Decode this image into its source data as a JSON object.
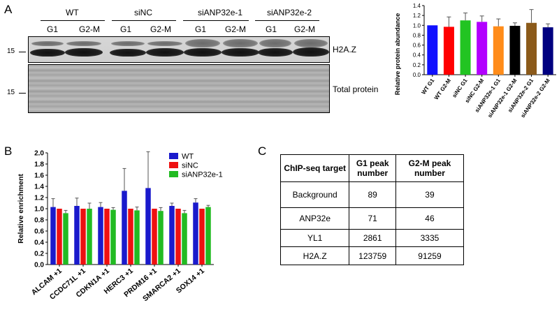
{
  "panel_a": {
    "letter": "A",
    "groups": [
      "WT",
      "siNC",
      "siANP32e-1",
      "siANP32e-2"
    ],
    "lanes": [
      "G1",
      "G2-M",
      "G1",
      "G2-M",
      "G1",
      "G2-M",
      "G1",
      "G2-M"
    ],
    "blot_top_label": "H2A.Z",
    "blot_bottom_label": "Total protein",
    "mw_top": "15",
    "mw_bottom": "15"
  },
  "panel_b": {
    "letter": "B"
  },
  "panel_c": {
    "letter": "C",
    "headers": [
      "ChIP-seq target",
      "G1 peak number",
      "G2-M peak number"
    ],
    "rows": [
      [
        "Background",
        "89",
        "39"
      ],
      [
        "ANP32e",
        "71",
        "46"
      ],
      [
        "YL1",
        "2861",
        "3335"
      ],
      [
        "H2A.Z",
        "123759",
        "91259"
      ]
    ]
  },
  "chart_data": [
    {
      "type": "bar",
      "ylabel": "Relative protein abundance",
      "xlabel": "",
      "ylim": [
        0,
        1.4
      ],
      "yticks": [
        0,
        0.2,
        0.4,
        0.6,
        0.8,
        1.0,
        1.2,
        1.4
      ],
      "categories": [
        "WT G1",
        "WT G2-M",
        "siNC G1",
        "siNC G2-M",
        "siANP32e-1 G1",
        "siANP32e-1 G2-M",
        "siANP32e-2 G1",
        "siANP32e-2 G2-M"
      ],
      "values": [
        1.0,
        0.97,
        1.1,
        1.07,
        0.98,
        0.99,
        1.05,
        0.96
      ],
      "errors": [
        0.0,
        0.2,
        0.15,
        0.12,
        0.15,
        0.06,
        0.27,
        0.07
      ],
      "colors": [
        "#1010ff",
        "#ff0000",
        "#22c422",
        "#b200ff",
        "#ff8c1a",
        "#000000",
        "#8b5a1a",
        "#000080"
      ]
    },
    {
      "type": "bar",
      "ylabel": "Relative enrichment",
      "xlabel": "",
      "ylim": [
        0,
        2.0
      ],
      "yticks": [
        0.0,
        0.2,
        0.4,
        0.6,
        0.8,
        1.0,
        1.2,
        1.4,
        1.6,
        1.8,
        2.0
      ],
      "legend_position": "top-right",
      "categories": [
        "ALCAM +1",
        "CCDC71L +1",
        "CDKN1A +1",
        "HERC3 +1",
        "PRDM16 +1",
        "SMARCA2 +1",
        "SOX14 +1"
      ],
      "series": [
        {
          "name": "WT",
          "color": "#1a1acc",
          "values": [
            1.03,
            1.05,
            1.03,
            1.32,
            1.37,
            1.05,
            1.11
          ],
          "errors": [
            0.15,
            0.14,
            0.08,
            0.4,
            0.65,
            0.05,
            0.07
          ]
        },
        {
          "name": "siNC",
          "color": "#ee1111",
          "values": [
            1.0,
            1.0,
            1.0,
            1.0,
            1.0,
            1.0,
            1.0
          ],
          "errors": [
            0.0,
            0.0,
            0.0,
            0.0,
            0.0,
            0.0,
            0.0
          ]
        },
        {
          "name": "siANP32e-1",
          "color": "#22bb22",
          "values": [
            0.92,
            1.0,
            0.98,
            0.97,
            0.96,
            0.92,
            1.03
          ],
          "errors": [
            0.05,
            0.1,
            0.04,
            0.06,
            0.06,
            0.05,
            0.03
          ]
        }
      ]
    }
  ]
}
